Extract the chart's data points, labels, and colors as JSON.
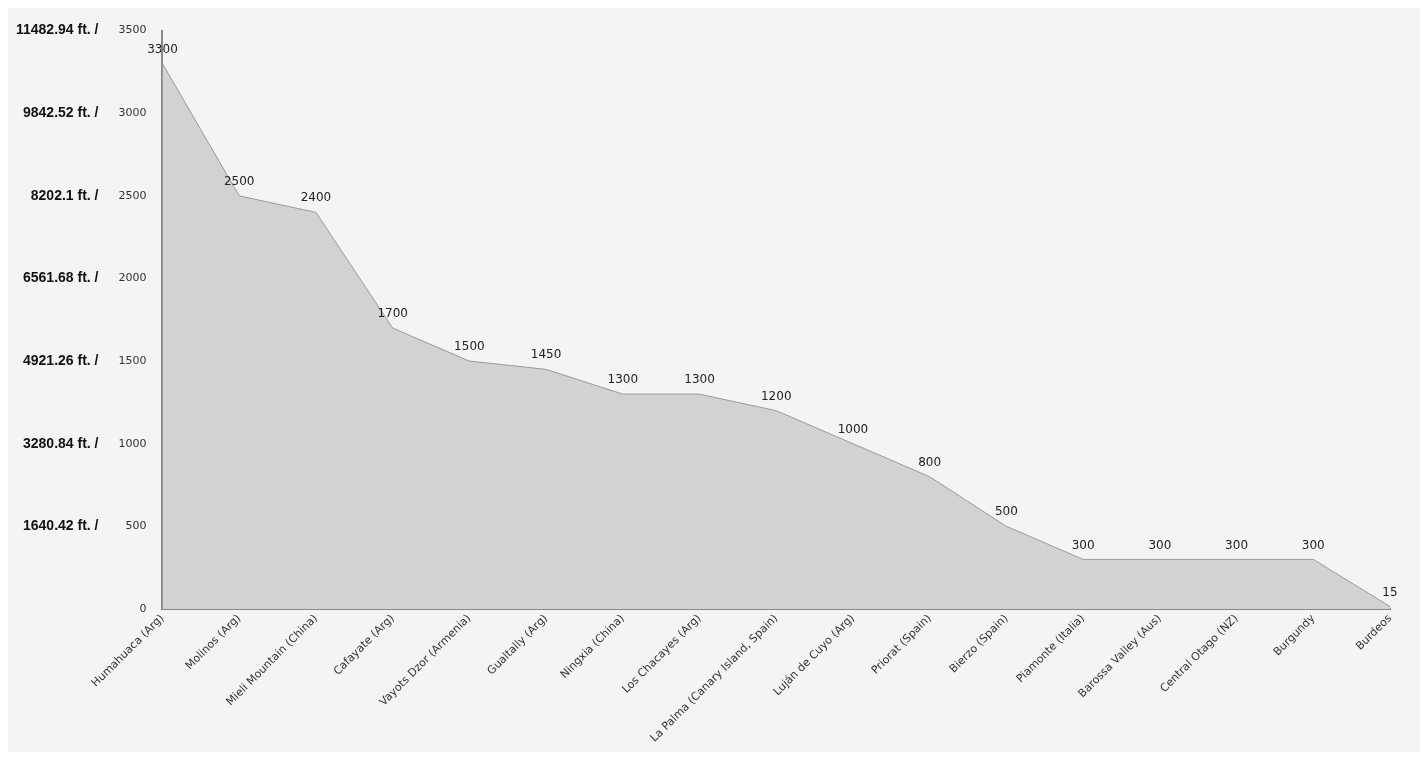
{
  "chart_data": {
    "type": "area",
    "categories": [
      "Humahuaca (Arg)",
      "Molinos (Arg)",
      "Mieli Mountain (China)",
      "Cafayate (Arg)",
      "Vayots Dzor (Armenia)",
      "Gualtally (Arg)",
      "Ningxia (China)",
      "Los Chacayes (Arg)",
      "La Palma (Canary Island, Spain)",
      "Luján de Cuyo (Arg)",
      "Priorat (Spain)",
      "Bierzo (Spain)",
      "Piamonte (Italia)",
      "Barossa Valley (Aus)",
      "Central Otago (NZ)",
      "Burgundy",
      "Burdeos"
    ],
    "series": [
      {
        "color": "#d2d2d2",
        "values": [
          3300,
          2500,
          2400,
          1700,
          1500,
          1450,
          1300,
          1300,
          1200,
          1000,
          800,
          500,
          300,
          300,
          300,
          300,
          15
        ]
      }
    ],
    "ylim": [
      0,
      3500
    ],
    "yticks": [
      0,
      500,
      1000,
      1500,
      2000,
      2500,
      3000,
      3500
    ],
    "y2lim": [
      0,
      11482.94
    ],
    "y2ticks": [
      {
        "value": 1640.42,
        "label": "1640.42 ft. /"
      },
      {
        "value": 3280.84,
        "label": "3280.84 ft. /"
      },
      {
        "value": 4921.26,
        "label": "4921.26 ft. /"
      },
      {
        "value": 6561.68,
        "label": "6561.68 ft. /"
      },
      {
        "value": 8202.1,
        "label": "8202.1 ft. /"
      },
      {
        "value": 9842.52,
        "label": "9842.52 ft. /"
      },
      {
        "value": 11482.94,
        "label": "11482.94 ft. /"
      }
    ],
    "data_labels": true,
    "grid": false,
    "legend": false
  }
}
